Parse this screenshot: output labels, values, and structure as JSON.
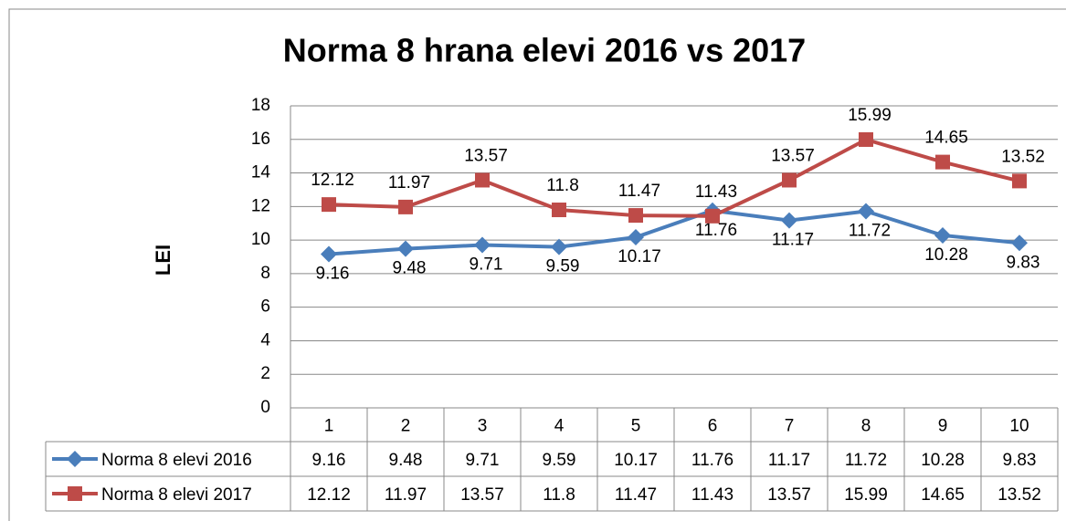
{
  "chart_data": {
    "type": "line",
    "title": "Norma 8 hrana elevi 2016 vs 2017",
    "y_label": "LEI",
    "categories": [
      "1",
      "2",
      "3",
      "4",
      "5",
      "6",
      "7",
      "8",
      "9",
      "10"
    ],
    "series": [
      {
        "name": "Norma 8 elevi 2016",
        "color": "#4a7ebb",
        "marker": "diamond",
        "values": [
          9.16,
          9.48,
          9.71,
          9.59,
          10.17,
          11.76,
          11.17,
          11.72,
          10.28,
          9.83
        ]
      },
      {
        "name": "Norma 8 elevi 2017",
        "color": "#be4b48",
        "marker": "square",
        "values": [
          12.12,
          11.97,
          13.57,
          11.8,
          11.47,
          11.43,
          13.57,
          15.99,
          14.65,
          13.52
        ]
      }
    ],
    "ylim": [
      0,
      18
    ],
    "yticks": [
      0,
      2,
      4,
      6,
      8,
      10,
      12,
      14,
      16,
      18
    ],
    "grid": true,
    "data_table": true
  }
}
